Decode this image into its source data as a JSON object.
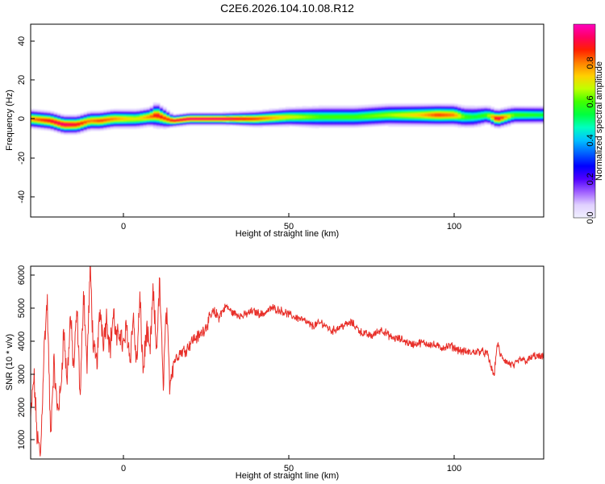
{
  "page_title": "C2E6.2026.104.10.08.R12",
  "chart_data": [
    {
      "type": "heatmap",
      "xlabel": "Height of straight line (km)",
      "ylabel": "Frequency (Hz)",
      "xlim": [
        -28,
        127
      ],
      "ylim": [
        -50,
        50
      ],
      "x_ticks": [
        "0",
        "50",
        "100"
      ],
      "y_ticks": [
        "40",
        "20",
        "0",
        "-20",
        "-40"
      ],
      "grid": false,
      "colorbar": {
        "label": "Normalized spectral amplitude",
        "range": [
          0,
          1
        ],
        "ticks": [
          "0.0",
          "0.2",
          "0.4",
          "0.6",
          "0.8"
        ],
        "colors": [
          "#f0f0ff",
          "#e0d0ff",
          "#a060ff",
          "#5000ff",
          "#0000ff",
          "#0060ff",
          "#00c0ff",
          "#00ffc0",
          "#00ff40",
          "#40ff00",
          "#c0ff00",
          "#ffd000",
          "#ff8000",
          "#ff2000",
          "#ff0060",
          "#ff00c0"
        ]
      },
      "ridge": {
        "x": [
          -28,
          -22,
          -18,
          -14,
          -10,
          -7,
          -3,
          0,
          4,
          8,
          10,
          13,
          15,
          20,
          30,
          40,
          50,
          60,
          70,
          80,
          90,
          95,
          100,
          103,
          106,
          110,
          113,
          118,
          127
        ],
        "center_hz": [
          1,
          0,
          -2,
          -2,
          0,
          0,
          1,
          1,
          1,
          2,
          3,
          1,
          0,
          1,
          1,
          1,
          2,
          2,
          2,
          3,
          3,
          3,
          3,
          2,
          2,
          3,
          1,
          3,
          3
        ],
        "halfwidth_hz": [
          3,
          3,
          3,
          3,
          3,
          3,
          3,
          3,
          3,
          3,
          4,
          3,
          2,
          2,
          2,
          2.5,
          3,
          3.5,
          3.5,
          3.5,
          3.5,
          3.5,
          3.5,
          3.5,
          3.5,
          3,
          3,
          3,
          3
        ],
        "peak": [
          0.8,
          0.9,
          0.95,
          0.9,
          0.8,
          0.85,
          0.8,
          0.75,
          0.7,
          0.8,
          0.9,
          0.85,
          0.9,
          0.95,
          0.95,
          0.85,
          0.7,
          0.6,
          0.6,
          0.65,
          0.75,
          0.85,
          0.8,
          0.6,
          0.55,
          0.6,
          0.95,
          0.6,
          0.55
        ]
      }
    },
    {
      "type": "line",
      "xlabel": "Height of straight line (km)",
      "ylabel": "SNR (10 * v/v)",
      "xlim": [
        -28,
        127
      ],
      "ylim": [
        300,
        6100
      ],
      "x_ticks": [
        "0",
        "50",
        "100"
      ],
      "y_ticks": [
        "6000",
        "5000",
        "4000",
        "3000",
        "2000",
        "1000"
      ],
      "grid": false,
      "series": [
        {
          "color": "#e8302a",
          "x": [
            -28,
            -27,
            -26,
            -25,
            -24,
            -23,
            -22,
            -21,
            -20,
            -19,
            -18,
            -17,
            -16,
            -15,
            -14,
            -13,
            -12,
            -11,
            -10,
            -9,
            -8,
            -7,
            -6,
            -5,
            -4,
            -3,
            -2,
            -1,
            0,
            1,
            2,
            3,
            4,
            5,
            6,
            7,
            8,
            9,
            10,
            11,
            12,
            13,
            14,
            15,
            17,
            19,
            21,
            23,
            25,
            27,
            29,
            31,
            33,
            36,
            39,
            42,
            45,
            48,
            51,
            54,
            57,
            60,
            63,
            66,
            69,
            72,
            75,
            78,
            81,
            84,
            87,
            90,
            93,
            96,
            99,
            102,
            105,
            108,
            110,
            111,
            112,
            113,
            114,
            116,
            118,
            120,
            122,
            124,
            127
          ],
          "y": [
            1500,
            2800,
            900,
            400,
            3500,
            5100,
            1000,
            3200,
            1800,
            2200,
            4200,
            2600,
            4600,
            3000,
            4800,
            2100,
            5500,
            3000,
            6100,
            3500,
            3200,
            4800,
            3900,
            4600,
            3600,
            4700,
            3800,
            4200,
            3600,
            4300,
            3300,
            4600,
            3100,
            5100,
            2900,
            4200,
            3400,
            5300,
            3600,
            5600,
            2500,
            4800,
            2600,
            3200,
            3500,
            3600,
            3900,
            4000,
            4300,
            4700,
            4600,
            4900,
            4700,
            4600,
            4750,
            4650,
            4850,
            4750,
            4600,
            4500,
            4300,
            4400,
            4150,
            4300,
            4400,
            4100,
            4000,
            4200,
            3950,
            3900,
            3750,
            3800,
            3750,
            3650,
            3700,
            3550,
            3500,
            3550,
            3450,
            3100,
            2800,
            3800,
            3400,
            3200,
            3100,
            3300,
            3250,
            3400,
            3350
          ]
        }
      ]
    }
  ]
}
